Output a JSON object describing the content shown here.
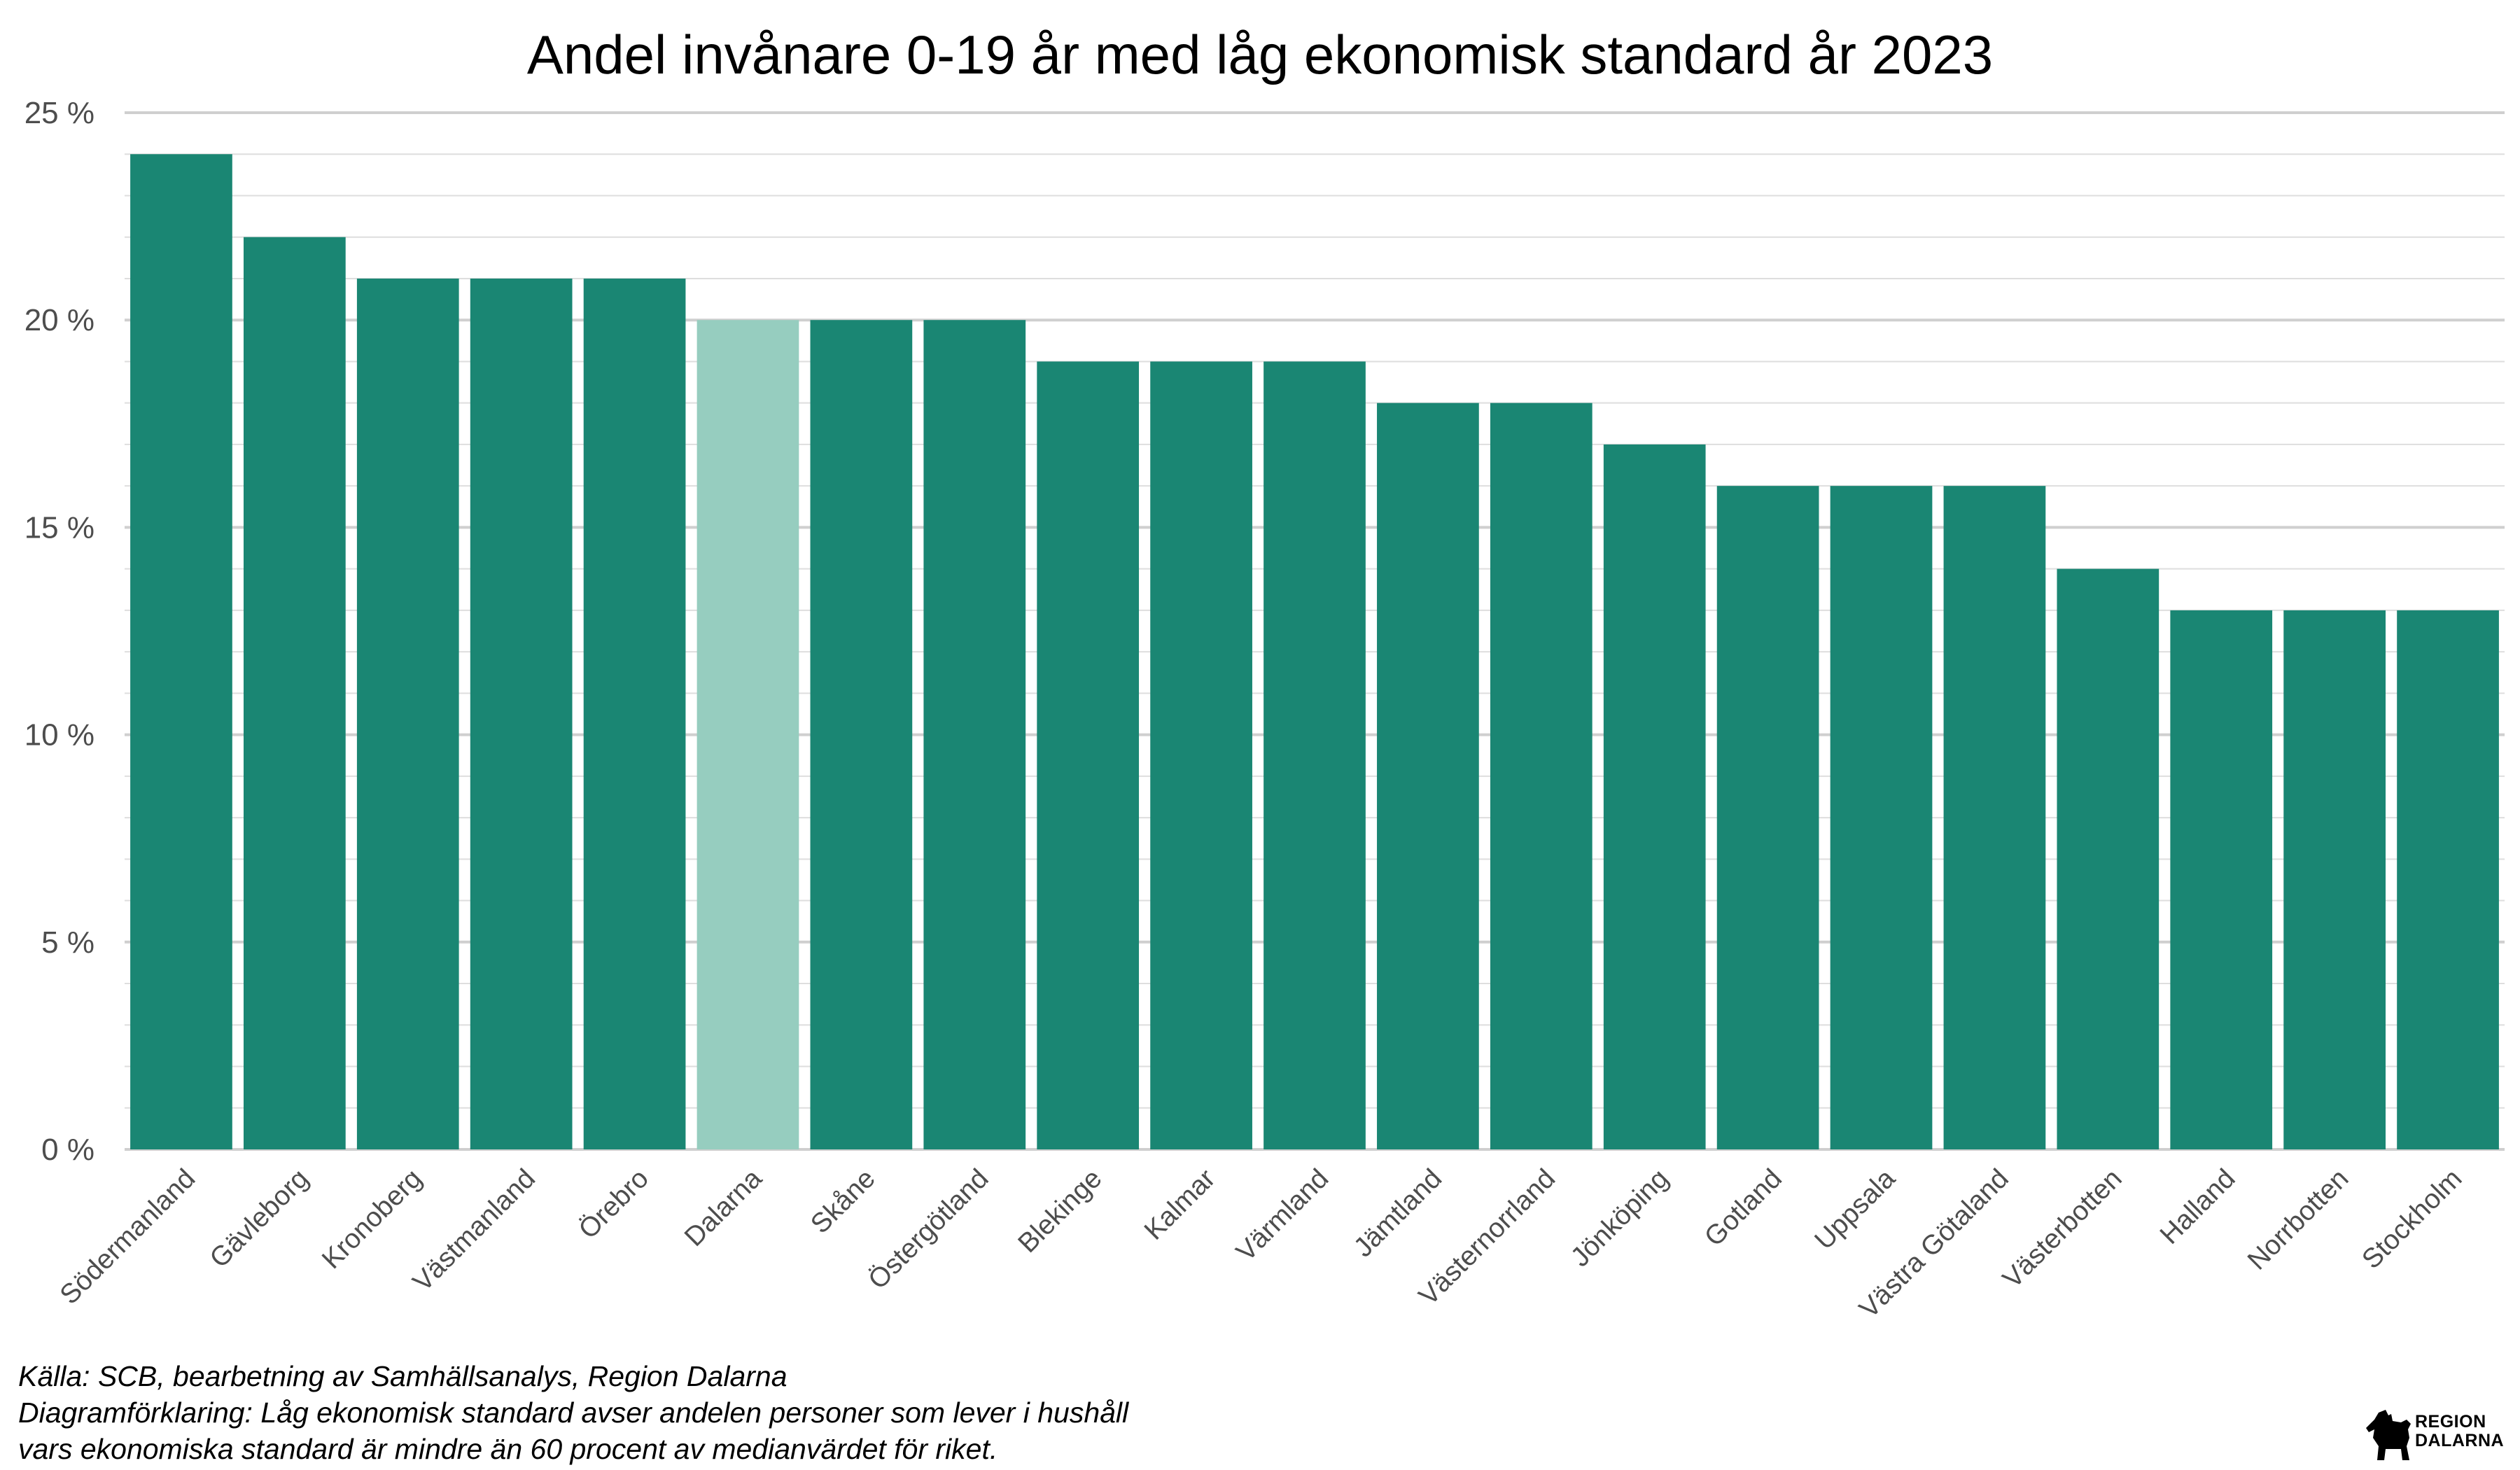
{
  "chart_data": {
    "type": "bar",
    "title": "Andel invånare 0-19 år med låg ekonomisk standard år 2023",
    "xlabel": "",
    "ylabel": "",
    "categories": [
      "Södermanland",
      "Gävleborg",
      "Kronoberg",
      "Västmanland",
      "Örebro",
      "Dalarna",
      "Skåne",
      "Östergötland",
      "Blekinge",
      "Kalmar",
      "Värmland",
      "Jämtland",
      "Västernorrland",
      "Jönköping",
      "Gotland",
      "Uppsala",
      "Västra Götaland",
      "Västerbotten",
      "Halland",
      "Norrbotten",
      "Stockholm"
    ],
    "values": [
      24,
      22,
      21,
      21,
      21,
      20,
      20,
      20,
      19,
      19,
      19,
      18,
      18,
      17,
      16,
      16,
      16,
      14,
      13,
      13,
      13
    ],
    "highlight_category": "Dalarna",
    "ylim": [
      0,
      25
    ],
    "y_ticks": [
      0,
      5,
      10,
      15,
      20,
      25
    ],
    "y_tick_labels": [
      "0 %",
      "5 %",
      "10 %",
      "15 %",
      "20 %",
      "25 %"
    ],
    "grid": true,
    "legend": "none",
    "colors": {
      "bar": "#1a8673",
      "highlight": "#96cdbf",
      "major_grid": "#cfcfcf",
      "minor_grid": "#dedede"
    }
  },
  "footer": {
    "source": " Källa: SCB, bearbetning av Samhällsanalys, Region Dalarna",
    "note_line1": "Diagramförklaring: Låg ekonomisk standard avser andelen personer som lever i hushåll",
    "note_line2": "vars ekonomiska standard är mindre än 60 procent av medianvärdet för riket."
  },
  "logo": {
    "line1": "REGION",
    "line2": "DALARNA",
    "icon": "dala-horse-icon"
  }
}
